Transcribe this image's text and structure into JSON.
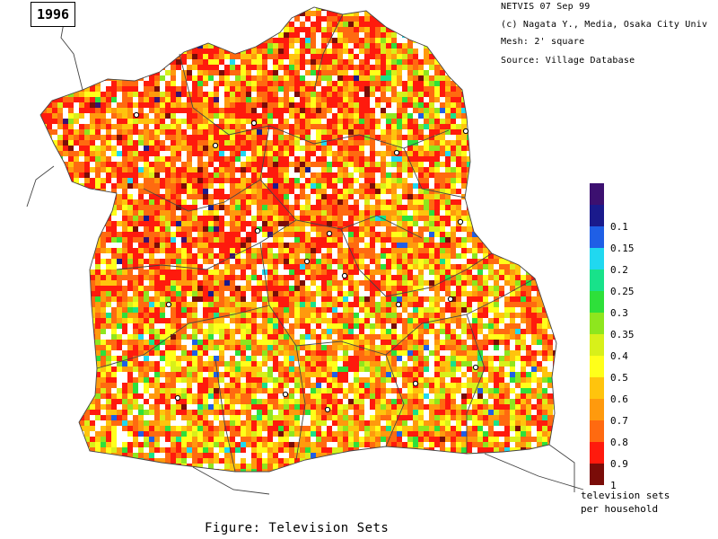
{
  "year": "1996",
  "info": {
    "line1": "NETVIS 07 Sep 99",
    "line2": "(c) Nagata Y., Media, Osaka City Univ",
    "line3": "Mesh:  2' square",
    "line4": "Source:  Village Database"
  },
  "legend": {
    "title_line1": "television sets",
    "title_line2": "per household",
    "items": [
      {
        "label": "",
        "color": "#3c1070"
      },
      {
        "label": "0.1",
        "color": "#1a1a8c"
      },
      {
        "label": "0.15",
        "color": "#1f5fe6"
      },
      {
        "label": "0.2",
        "color": "#20d8f0"
      },
      {
        "label": "0.25",
        "color": "#18e28a"
      },
      {
        "label": "0.3",
        "color": "#2ee03a"
      },
      {
        "label": "0.35",
        "color": "#8ee61e"
      },
      {
        "label": "0.4",
        "color": "#d8f01a"
      },
      {
        "label": "0.5",
        "color": "#ffff1a"
      },
      {
        "label": "0.6",
        "color": "#ffc40d"
      },
      {
        "label": "0.7",
        "color": "#ff9a0d"
      },
      {
        "label": "0.8",
        "color": "#ff6a10"
      },
      {
        "label": "0.9",
        "color": "#ff1a0d"
      },
      {
        "label": "1",
        "color": "#7a0c08"
      }
    ]
  },
  "caption": "Figure: Television Sets"
}
